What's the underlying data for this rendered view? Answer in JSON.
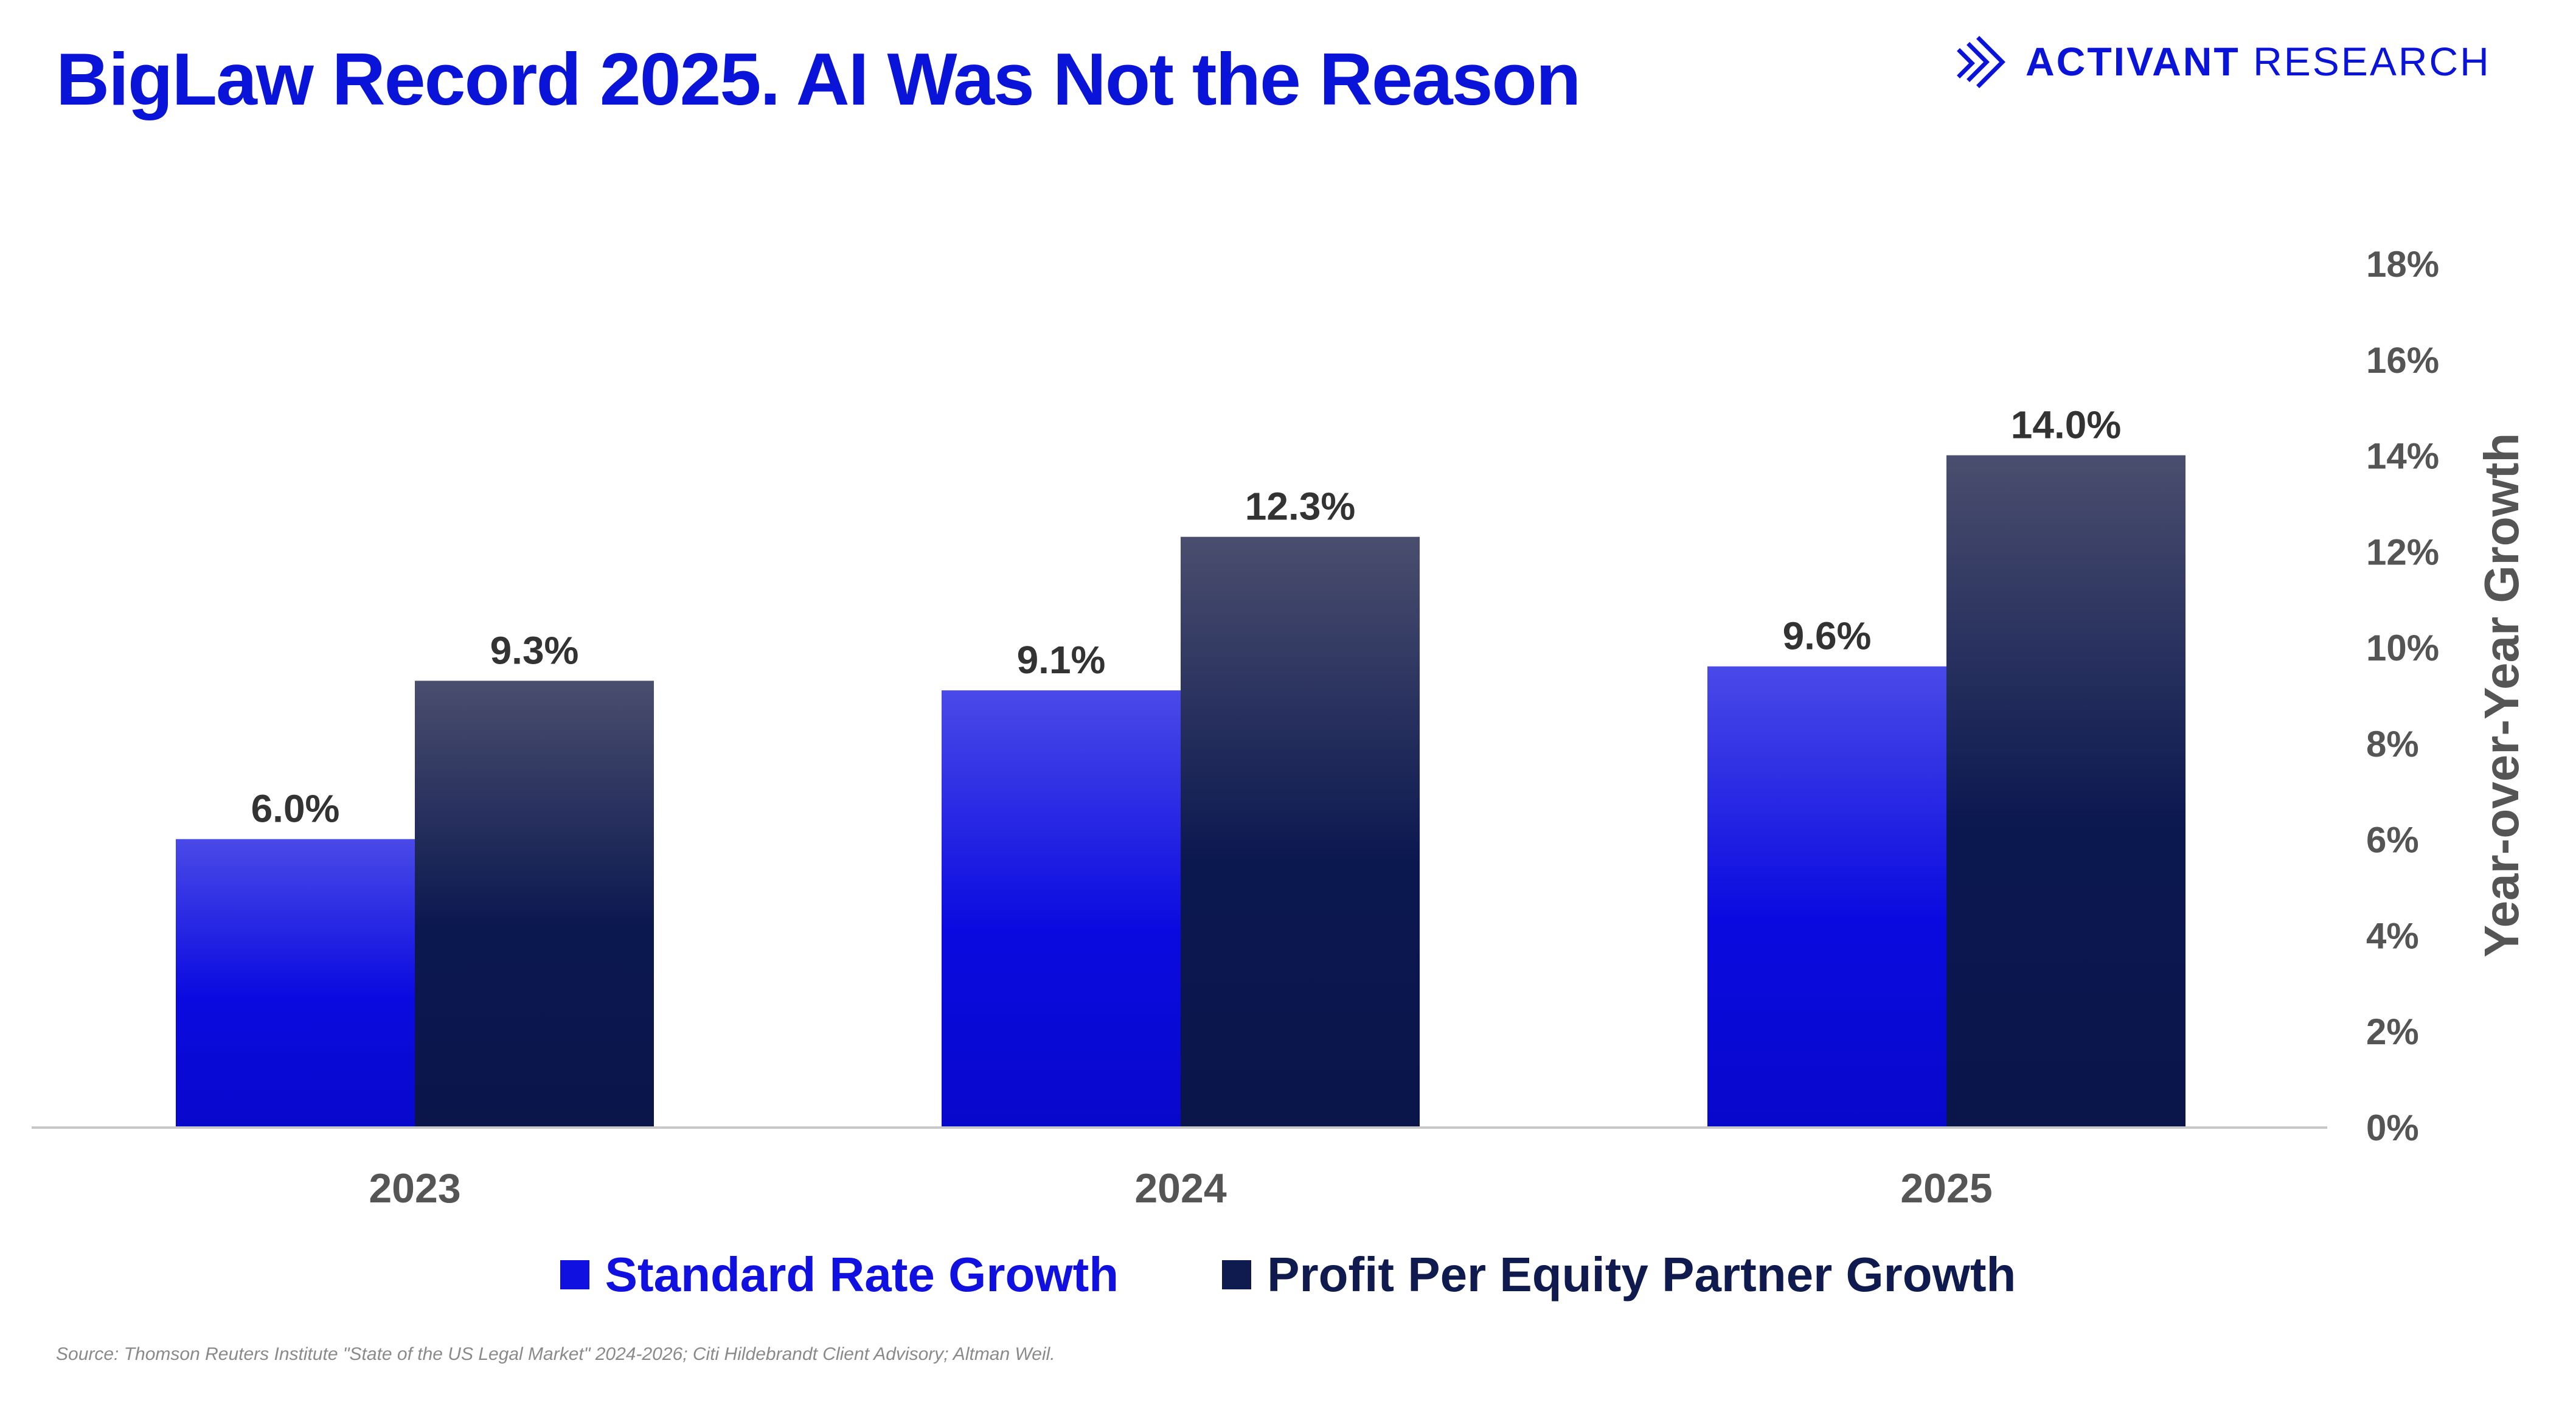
{
  "title": "BigLaw Record 2025. AI Was Not the Reason",
  "brand": {
    "name_bold": "ACTIVANT",
    "name_light": "RESEARCH",
    "icon": "activant-logo-icon"
  },
  "colors": {
    "title": "#0a14d8",
    "series_standard": "#1010e0",
    "series_ppep": "#0f1a4e",
    "axis_text": "#555555"
  },
  "chart_data": {
    "type": "bar",
    "title": "BigLaw Record 2025. AI Was Not the Reason",
    "categories": [
      "2023",
      "2024",
      "2025"
    ],
    "series": [
      {
        "name": "Standard Rate Growth",
        "values": [
          6.0,
          9.1,
          9.6
        ],
        "labels": [
          "6.0%",
          "9.1%",
          "9.6%"
        ]
      },
      {
        "name": "Profit Per Equity Partner Growth",
        "values": [
          9.3,
          12.3,
          14.0
        ],
        "labels": [
          "9.3%",
          "12.3%",
          "14.0%"
        ]
      }
    ],
    "ylabel": "Year-over-Year Growth",
    "xlabel": "",
    "ylim": [
      0,
      18
    ],
    "yticks": [
      "0%",
      "2%",
      "4%",
      "6%",
      "8%",
      "10%",
      "12%",
      "14%",
      "16%",
      "18%"
    ],
    "y_axis_side": "right",
    "grid": false,
    "legend_position": "bottom"
  },
  "source": "Source: Thomson Reuters Institute \"State of the US Legal Market\" 2024-2026; Citi Hildebrandt Client Advisory; Altman Weil."
}
